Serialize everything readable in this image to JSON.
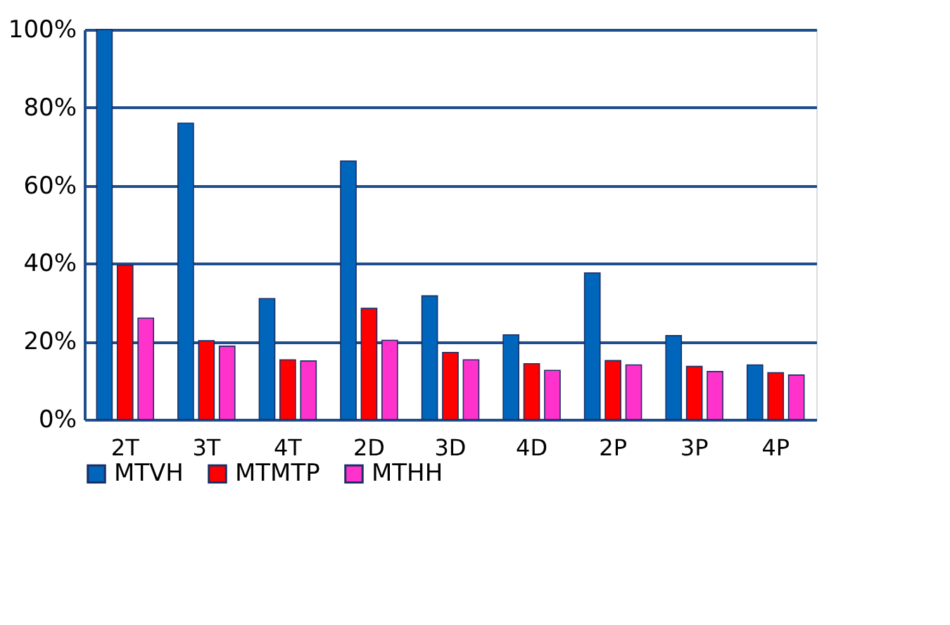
{
  "chart_data": {
    "type": "bar",
    "categories": [
      "2T",
      "3T",
      "4T",
      "2D",
      "3D",
      "4D",
      "2P",
      "3P",
      "4P"
    ],
    "series": [
      {
        "name": "MTVH",
        "color": "#0066bb",
        "values": [
          100,
          76,
          31,
          66.3,
          31.7,
          21.7,
          37.6,
          21.5,
          14
        ]
      },
      {
        "name": "MTMTP",
        "color": "#ff0000",
        "values": [
          39.6,
          20.2,
          15.3,
          28.5,
          17.2,
          14.3,
          15.1,
          13.6,
          12
        ]
      },
      {
        "name": "MTHH",
        "color": "#ff33cc",
        "values": [
          26,
          18.8,
          15,
          20.3,
          15.3,
          12.6,
          14,
          12.3,
          11.4
        ]
      }
    ],
    "ylim": [
      0,
      100
    ],
    "yticks": [
      {
        "value": 0,
        "label": "0%"
      },
      {
        "value": 20,
        "label": "20%"
      },
      {
        "value": 40,
        "label": "40%"
      },
      {
        "value": 60,
        "label": "60%"
      },
      {
        "value": 80,
        "label": "80%"
      },
      {
        "value": 100,
        "label": "100%"
      }
    ],
    "grid": "y",
    "legend": "bottom"
  }
}
